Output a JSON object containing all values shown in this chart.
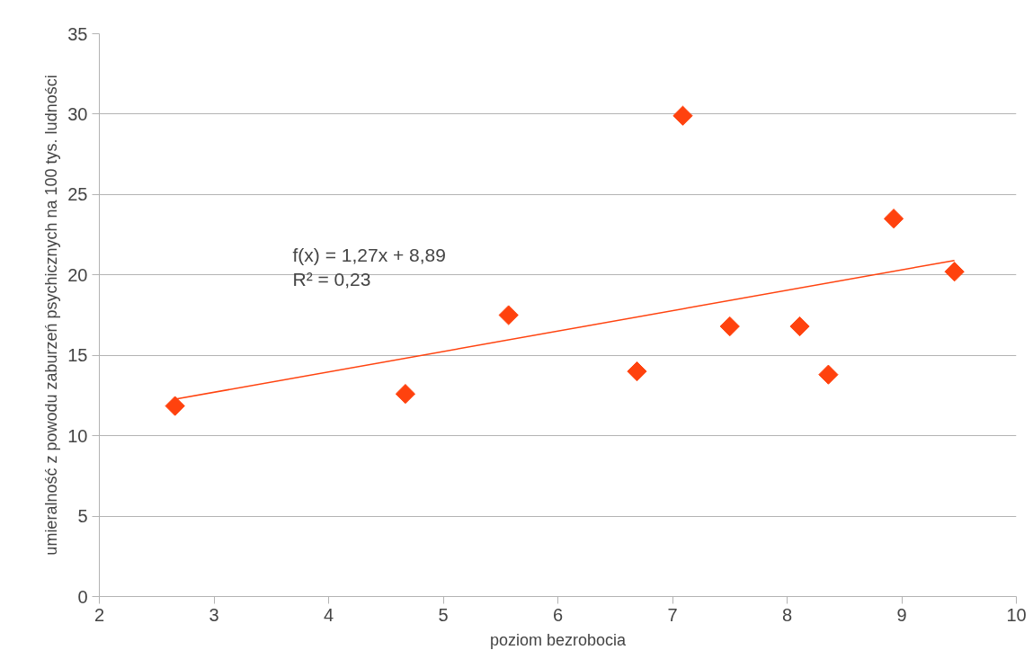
{
  "chart_data": {
    "type": "scatter",
    "xlabel": "poziom bezrobocia",
    "ylabel": "umieralność z powodu zaburzeń psychicznych na 100 tys. ludności",
    "xlim": [
      2,
      10
    ],
    "xticks": [
      2,
      3,
      4,
      5,
      6,
      7,
      8,
      9,
      10
    ],
    "ylim": [
      0,
      35
    ],
    "yticks": [
      0,
      5,
      10,
      15,
      20,
      25,
      30,
      35
    ],
    "grid": "y",
    "series": [
      {
        "marker": "diamond",
        "color": "#ff420e",
        "x": [
          2.66,
          4.67,
          5.57,
          6.69,
          7.09,
          7.5,
          8.11,
          8.36,
          8.93,
          9.46
        ],
        "values": [
          11.85,
          12.6,
          17.5,
          14.0,
          29.9,
          16.8,
          16.8,
          13.8,
          23.5,
          20.2
        ]
      },
      {
        "type": "line",
        "color": "#ff420e",
        "x": [
          2.66,
          9.46
        ],
        "values": [
          12.27,
          20.9
        ]
      }
    ],
    "annotations": [
      "f(x) = 1,27x + 8,89",
      "R² = 0,23"
    ]
  }
}
